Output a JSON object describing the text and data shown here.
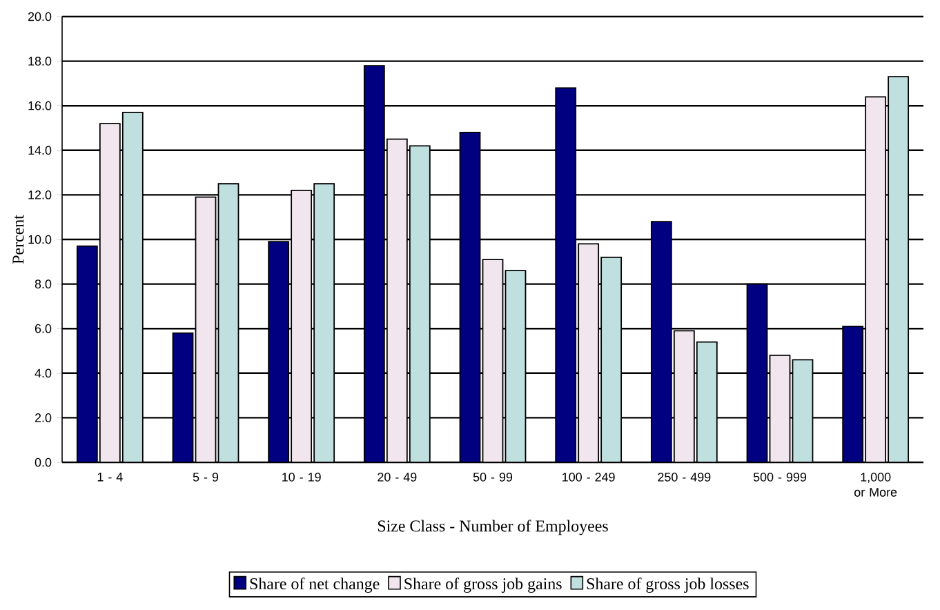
{
  "chart_data": {
    "type": "bar",
    "xlabel": "Size Class - Number of Employees",
    "ylabel": "Percent",
    "categories": [
      "1 - 4",
      "5 - 9",
      "10 - 19",
      "20 - 49",
      "50 - 99",
      "100 - 249",
      "250 - 499",
      "500 - 999",
      "1,000 or More"
    ],
    "series": [
      {
        "name": "Share of net change",
        "color": "#000080",
        "values": [
          9.7,
          5.8,
          9.9,
          17.8,
          14.8,
          16.8,
          10.8,
          8.0,
          6.1
        ]
      },
      {
        "name": "Share of gross job gains",
        "color": "#f2e6ee",
        "values": [
          15.2,
          11.9,
          12.2,
          14.5,
          9.1,
          9.8,
          5.9,
          4.8,
          16.4
        ]
      },
      {
        "name": "Share of gross job losses",
        "color": "#c0e0e0",
        "values": [
          15.7,
          12.5,
          12.5,
          14.2,
          8.6,
          9.2,
          5.4,
          4.6,
          17.3
        ]
      }
    ],
    "ylim": [
      0,
      20
    ],
    "yticks": [
      {
        "value": 0,
        "label": "0.0"
      },
      {
        "value": 2,
        "label": "2.0"
      },
      {
        "value": 4,
        "label": "4.0"
      },
      {
        "value": 6,
        "label": "6.0"
      },
      {
        "value": 8,
        "label": "8.0"
      },
      {
        "value": 10,
        "label": "10.0"
      },
      {
        "value": 12,
        "label": "12.0"
      },
      {
        "value": 14,
        "label": "14.0"
      },
      {
        "value": 16,
        "label": "16.0"
      },
      {
        "value": 18,
        "label": "18.0"
      },
      {
        "value": 20,
        "label": "20.0"
      }
    ],
    "grid": "y",
    "legend": "bottom"
  }
}
